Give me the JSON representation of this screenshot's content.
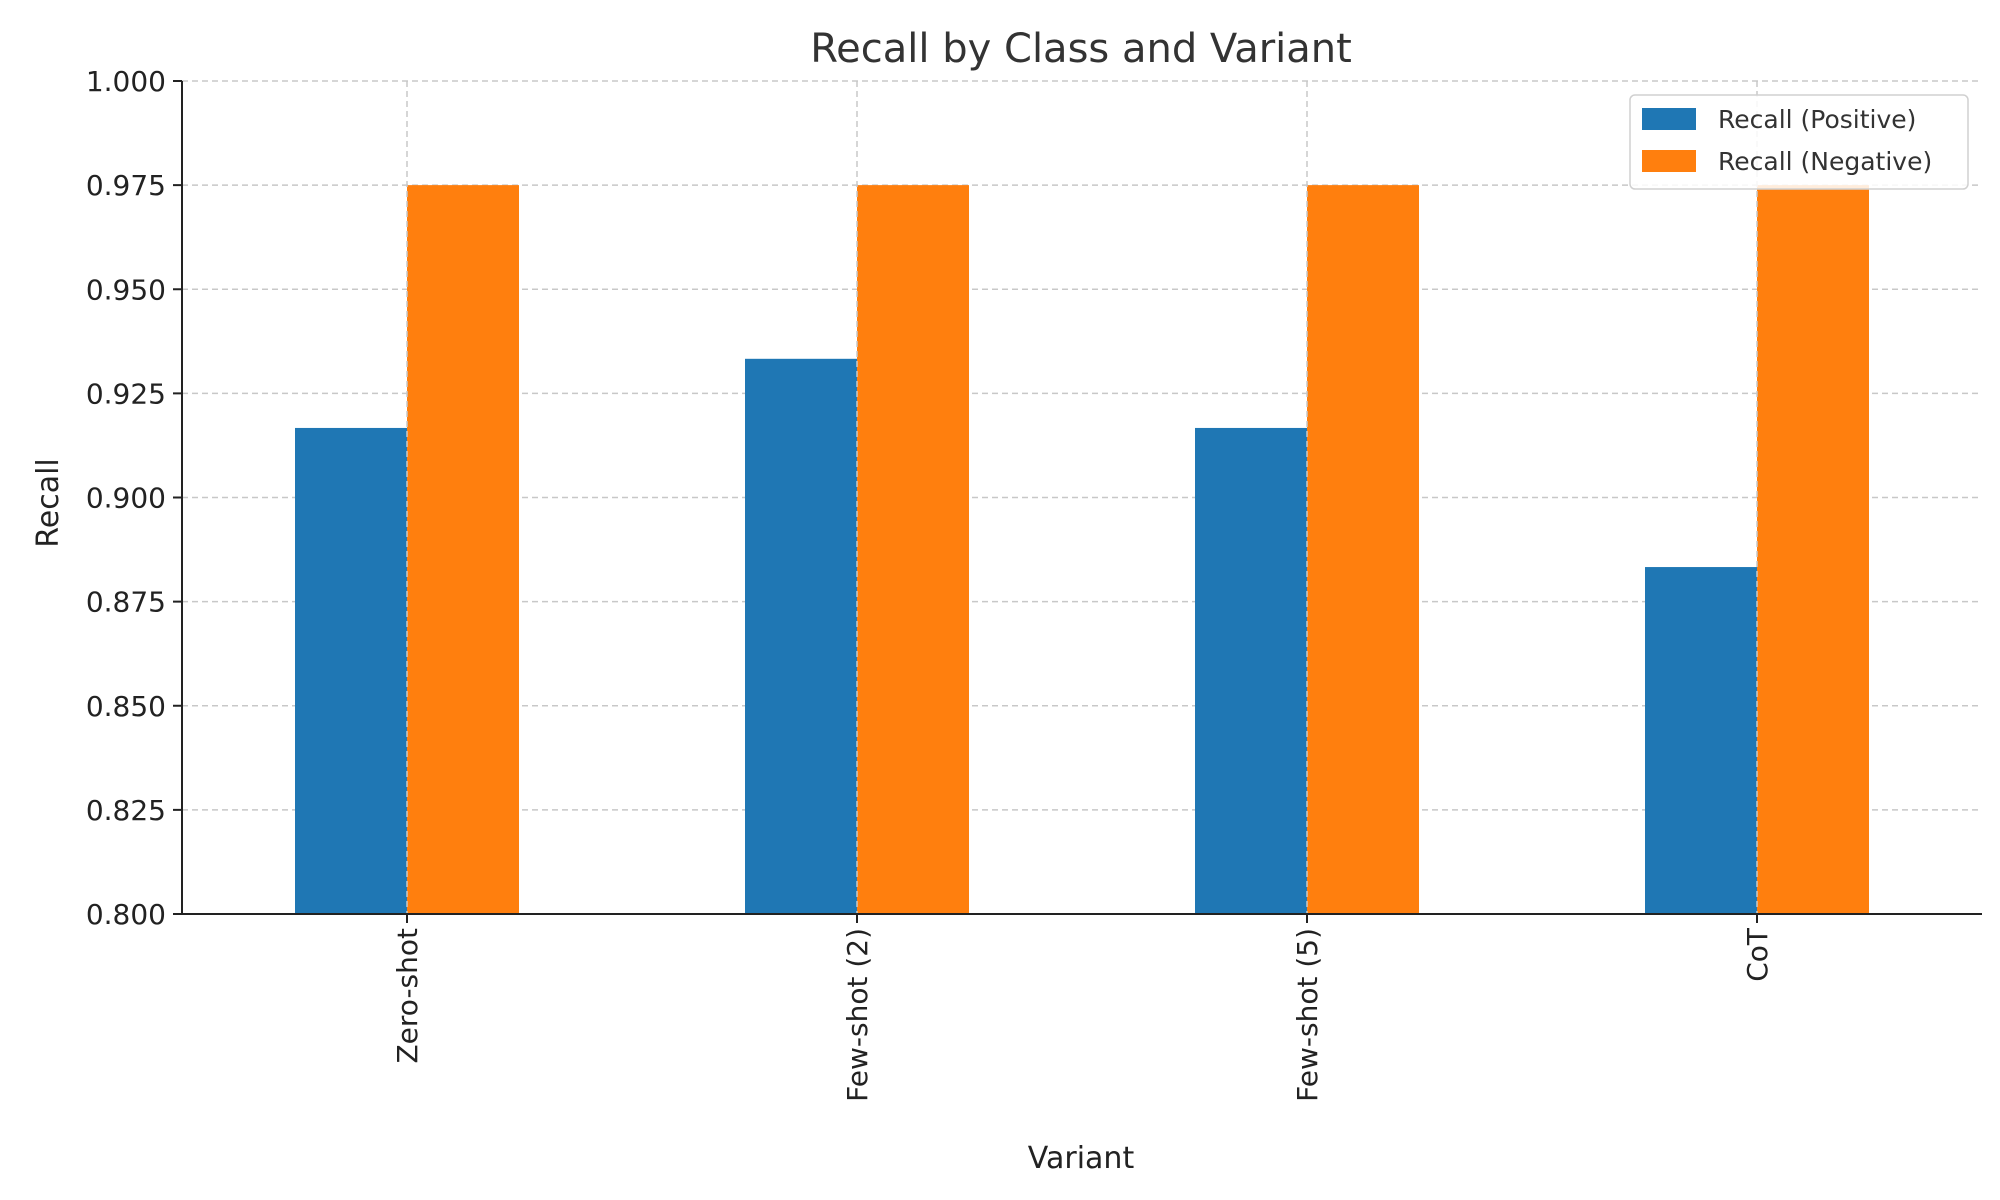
{
  "chart_data": {
    "type": "bar",
    "title": "Recall by Class and Variant",
    "xlabel": "Variant",
    "ylabel": "Recall",
    "categories": [
      "Zero-shot",
      "Few-shot (2)",
      "Few-shot (5)",
      "CoT"
    ],
    "series": [
      {
        "name": "Recall (Positive)",
        "color": "#1f77b4",
        "values": [
          0.9167,
          0.9333,
          0.9167,
          0.8833
        ]
      },
      {
        "name": "Recall (Negative)",
        "color": "#ff7f0e",
        "values": [
          0.975,
          0.975,
          0.975,
          0.975
        ]
      }
    ],
    "ylim": [
      0.8,
      1.0
    ],
    "yticks": [
      "0.800",
      "0.825",
      "0.850",
      "0.875",
      "0.900",
      "0.925",
      "0.950",
      "0.975",
      "1.000"
    ],
    "grid": true,
    "legend_position": "top-right"
  }
}
